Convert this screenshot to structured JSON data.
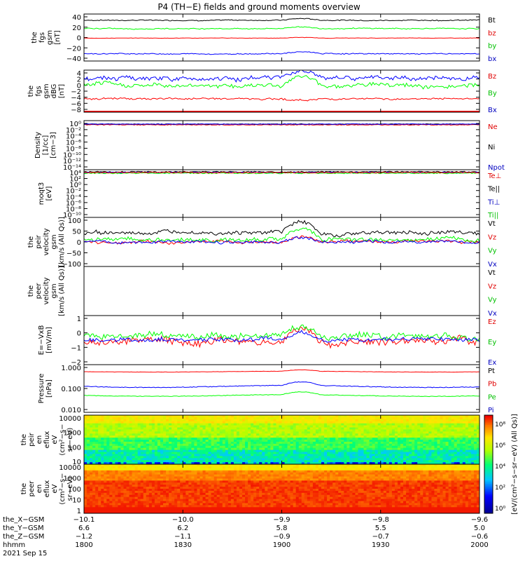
{
  "title": "P4 (TH−E) fields and ground moments overview",
  "colors": {
    "black": "#000000",
    "red": "#ff0000",
    "green": "#00ff00",
    "blue": "#0000ff",
    "red_axis": "#e00000",
    "green_label": "#00c000",
    "blue_label": "#0000c0"
  },
  "chart_data": [
    {
      "type": "line",
      "panel": "fgs_gsm",
      "ylabel": [
        "the",
        "fgs",
        "gsm",
        "[nT]"
      ],
      "yticks": [
        "40",
        "20",
        "0",
        "−20",
        "−40"
      ],
      "ylim": [
        -40,
        44
      ],
      "series": [
        {
          "name": "Bt",
          "color": "black",
          "level": 33,
          "noise": 1.5
        },
        {
          "name": "bz",
          "color": "red",
          "level": 1,
          "noise": 0.6
        },
        {
          "name": "by",
          "color": "green",
          "level": 18,
          "noise": 1.5
        },
        {
          "name": "bx",
          "color": "blue",
          "level": -27,
          "noise": 1.5
        }
      ]
    },
    {
      "type": "line",
      "panel": "fgs_gse",
      "ylabel": [
        "the",
        "fgs",
        "gsm",
        "dBG",
        "[nT]"
      ],
      "yticks": [
        "4",
        "2",
        "0",
        "−2",
        "−4",
        "−6",
        "−8"
      ],
      "ylim": [
        -9,
        5
      ],
      "series": [
        {
          "name": "Bz",
          "color": "red",
          "level": -4.5,
          "noise": 0.5
        },
        {
          "name": "By",
          "color": "green",
          "level": 0,
          "noise": 1.2
        },
        {
          "name": "Bx",
          "color": "blue",
          "level": 2.3,
          "noise": 1.2
        }
      ]
    },
    {
      "type": "line",
      "panel": "density",
      "ylabel": [
        "Density",
        "[1/cc]",
        "[cm−3]"
      ],
      "yticks": [
        "10⁰",
        "10⁻²",
        "10⁻⁴",
        "10⁻⁶",
        "10⁻⁸",
        "10⁻¹⁰",
        "10⁻¹²",
        "10⁻¹⁴"
      ],
      "series": [
        {
          "name": "Ne",
          "color": "red"
        },
        {
          "name": "Ni",
          "color": "black"
        },
        {
          "name": "Npot",
          "color": "blue"
        }
      ]
    },
    {
      "type": "line",
      "panel": "temperature",
      "ylabel": [
        "moqt3",
        "[eV]"
      ],
      "yticks": [
        "10⁴",
        "10²",
        "10⁰",
        "10⁻²",
        "10⁻⁴",
        "10⁻⁶",
        "10⁻⁸",
        "10⁻¹⁰"
      ],
      "series": [
        {
          "name": "Te⊥",
          "color": "red"
        },
        {
          "name": "Te||",
          "color": "black"
        },
        {
          "name": "Ti⊥",
          "color": "blue"
        },
        {
          "name": "Ti||",
          "color": "green"
        }
      ]
    },
    {
      "type": "line",
      "panel": "peir_velocity",
      "ylabel": [
        "the",
        "peir",
        "velocity",
        "gsm",
        "[km/s (All Qs)]"
      ],
      "yticks": [
        "100",
        "50",
        "0",
        "−50",
        "−100"
      ],
      "ylim": [
        -100,
        100
      ],
      "series": [
        {
          "name": "Vt",
          "color": "black",
          "level": 38,
          "noise": 14
        },
        {
          "name": "Vz",
          "color": "red",
          "level": 0,
          "noise": 10
        },
        {
          "name": "Vy",
          "color": "green",
          "level": 8,
          "noise": 14
        },
        {
          "name": "Vx",
          "color": "blue",
          "level": 0,
          "noise": 10
        }
      ]
    },
    {
      "type": "line",
      "panel": "peer_velocity",
      "ylabel": [
        "the",
        "peer",
        "velocity",
        "gsm",
        "[km/s (All Qs)]"
      ],
      "yticks": [],
      "series": [
        {
          "name": "Vt",
          "color": "black"
        },
        {
          "name": "Vz",
          "color": "red"
        },
        {
          "name": "Vy",
          "color": "green"
        },
        {
          "name": "Vx",
          "color": "blue"
        }
      ]
    },
    {
      "type": "line",
      "panel": "efield",
      "ylabel": [
        "E=−VxB",
        "[mV/m]"
      ],
      "yticks": [
        "1",
        "0",
        "−1",
        "−2"
      ],
      "ylim": [
        -2.7,
        1.6
      ],
      "series": [
        {
          "name": "Ez",
          "color": "red",
          "level": -0.7,
          "noise": 0.55
        },
        {
          "name": "Ey",
          "color": "green",
          "level": -0.2,
          "noise": 0.45
        },
        {
          "name": "Ex",
          "color": "blue",
          "level": -0.5,
          "noise": 0.3
        }
      ]
    },
    {
      "type": "line",
      "panel": "pressure",
      "ylabel": [
        "Pressure",
        "[nPa]"
      ],
      "yticks": [
        "1.000",
        "0.100",
        "0.010"
      ],
      "series": [
        {
          "name": "Pt",
          "color": "black"
        },
        {
          "name": "Pb",
          "color": "red"
        },
        {
          "name": "Pe",
          "color": "green"
        },
        {
          "name": "Pi",
          "color": "blue"
        }
      ]
    },
    {
      "type": "heatmap",
      "panel": "peir_eflux",
      "ylabel": [
        "the",
        "peir",
        "en",
        "eflux",
        "eV",
        "(cm²−s−",
        "sr−eV)"
      ],
      "yticks": [
        "10000",
        "1000",
        "100",
        "10"
      ]
    },
    {
      "type": "heatmap",
      "panel": "peer_eflux",
      "ylabel": [
        "the",
        "peer",
        "en",
        "eflux",
        "eV",
        "(cm²−s−",
        "sr−eV)"
      ],
      "yticks": [
        "10000",
        "1000",
        "100",
        "10",
        "1"
      ]
    }
  ],
  "colorbar": {
    "ticks": [
      "10⁸",
      "10⁶",
      "10⁴",
      "10²",
      "10⁰"
    ],
    "label": "[eV/(cm²−s−sr−eV) (All Qs)]"
  },
  "xaxis": {
    "rows": [
      {
        "label": "the_X−GSM",
        "values": [
          "−10.1",
          "−10.0",
          "−9.9",
          "−9.8",
          "−9.6"
        ]
      },
      {
        "label": "the_Y−GSM",
        "values": [
          "6.6",
          "6.2",
          "5.8",
          "5.5",
          "5.0"
        ]
      },
      {
        "label": "the_Z−GSM",
        "values": [
          "−1.2",
          "−1.1",
          "−0.9",
          "−0.7",
          "−0.6"
        ]
      },
      {
        "label": "hhmm",
        "values": [
          "1800",
          "1830",
          "1900",
          "1930",
          "2000"
        ]
      }
    ],
    "date": "2021 Sep 15"
  }
}
